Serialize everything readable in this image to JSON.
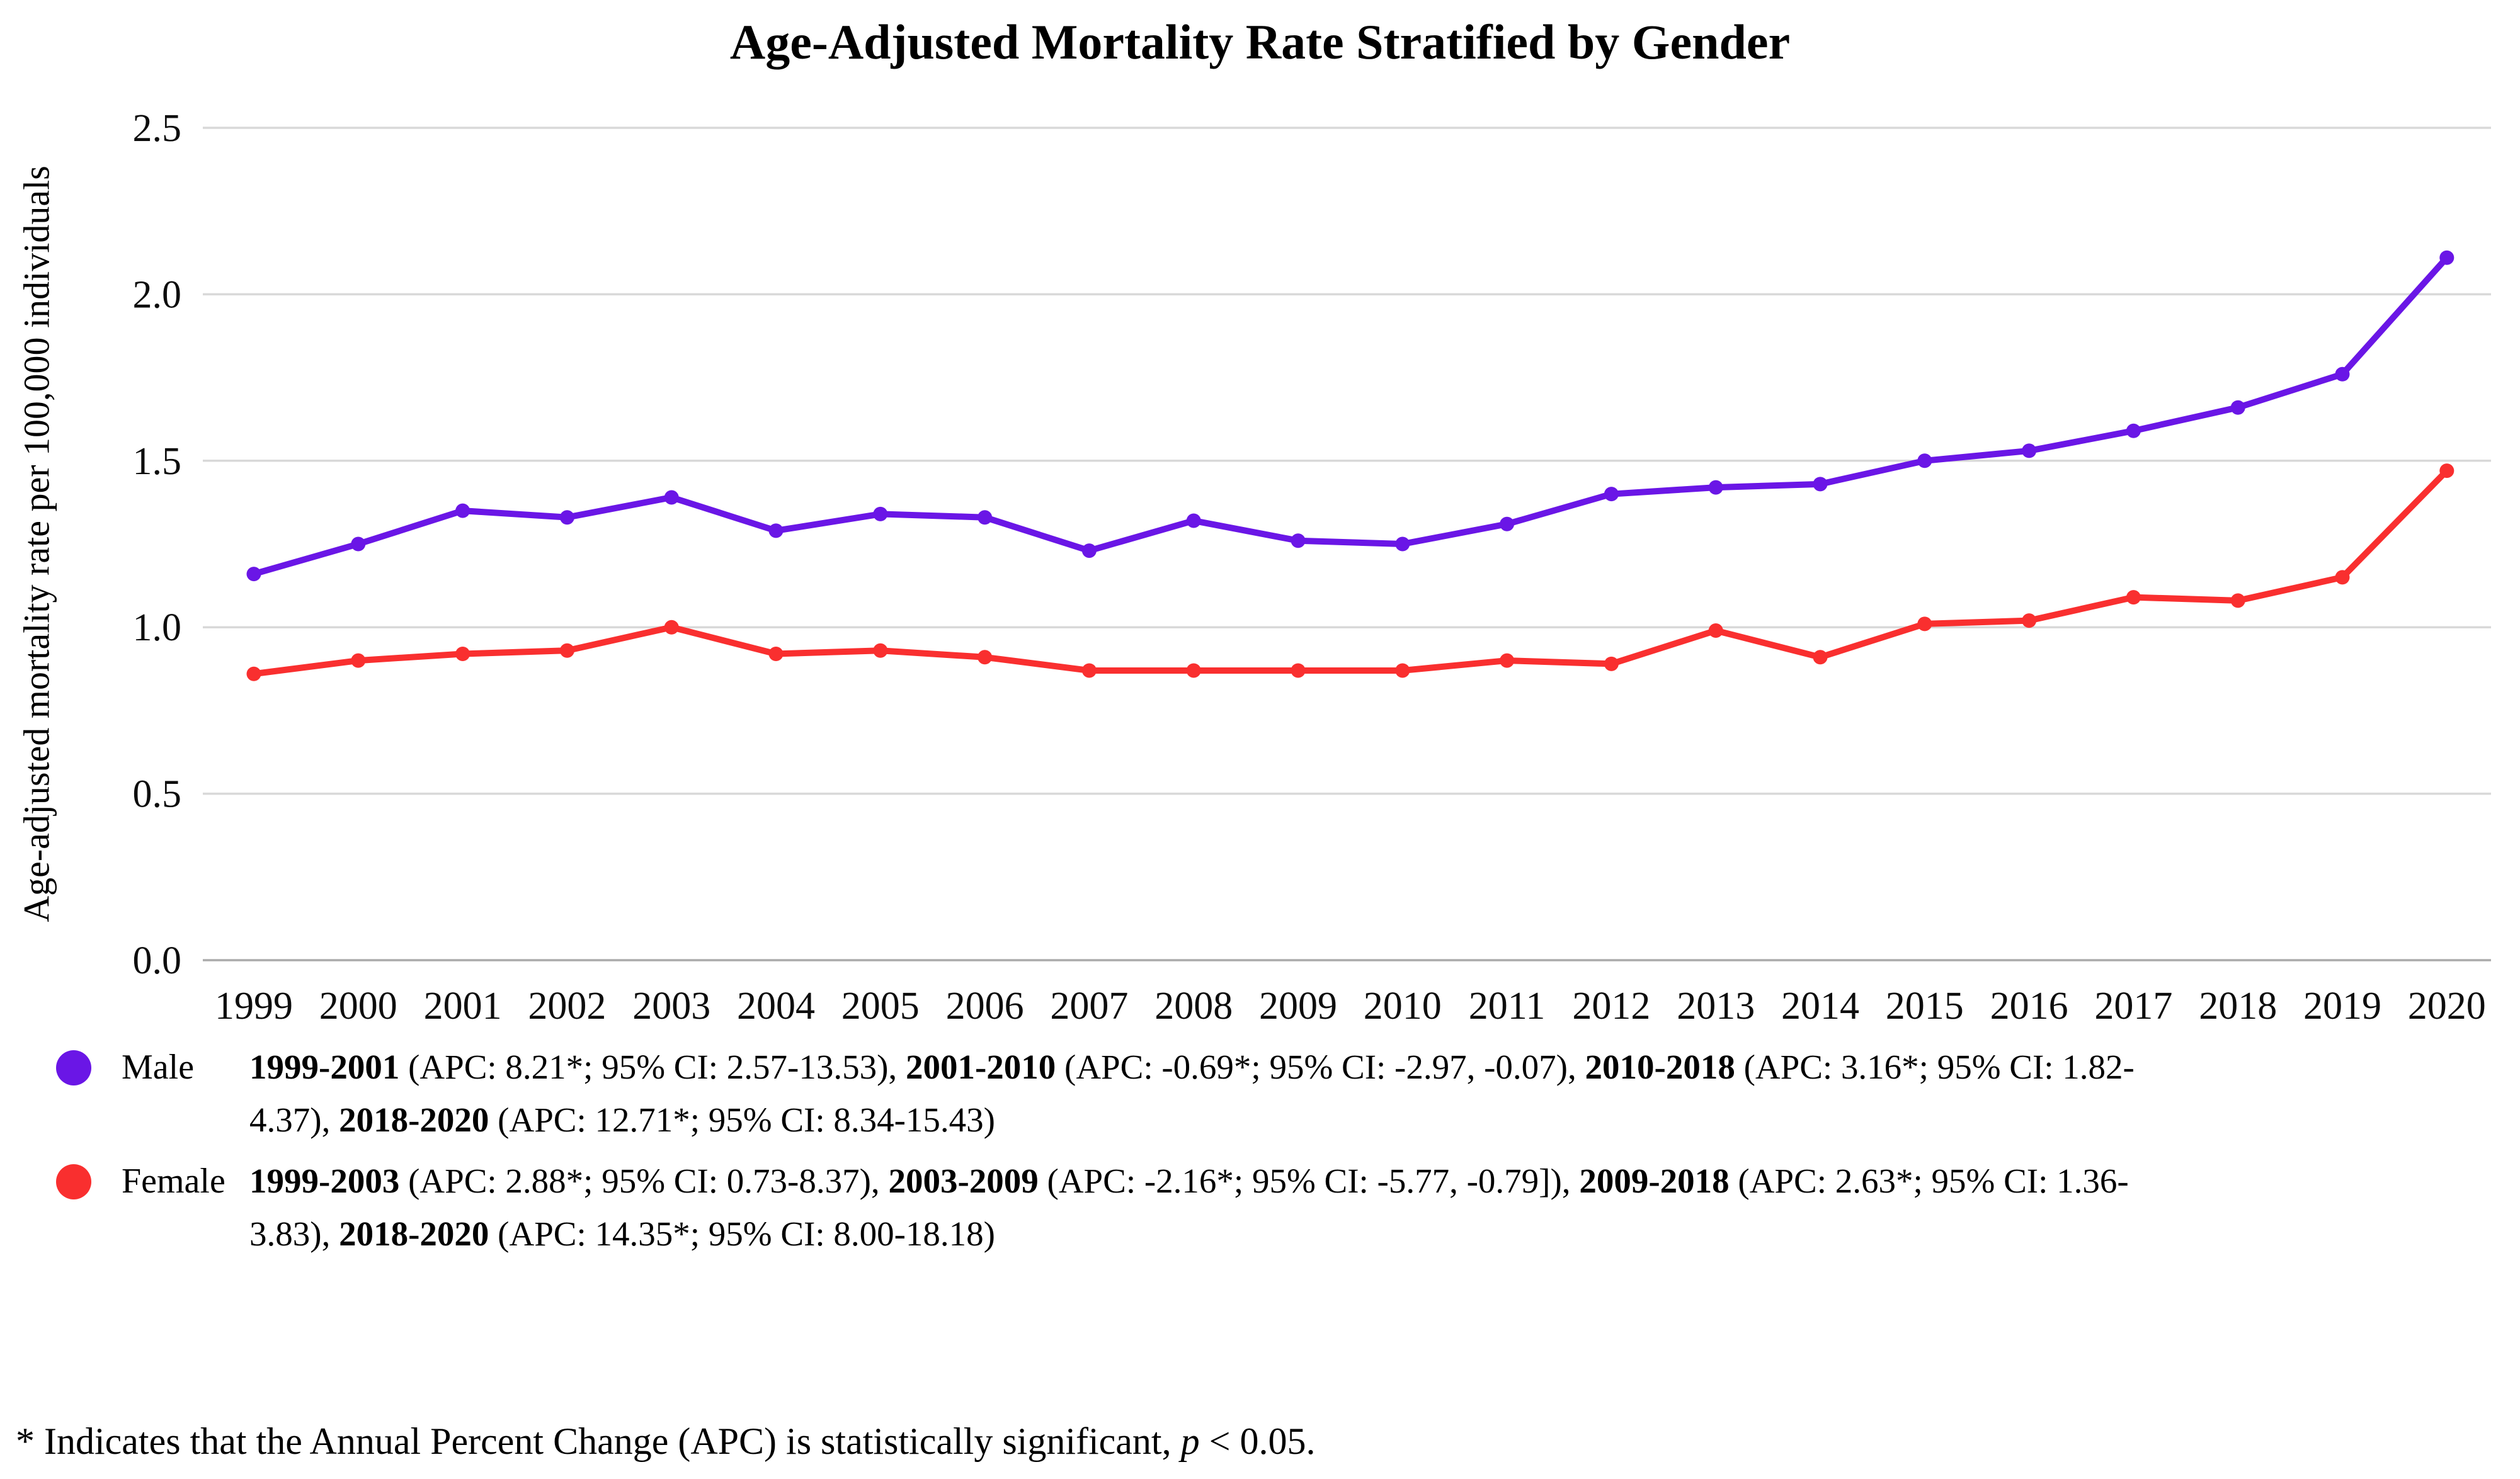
{
  "title": "Age-Adjusted Mortality Rate Stratified by Gender",
  "colors": {
    "male": "#6A16E6",
    "female": "#F92F2F",
    "gridline": "#d9d9d9",
    "axis_line": "#ababab"
  },
  "chart_data": {
    "type": "line",
    "title": "Age-Adjusted Mortality Rate Stratified by Gender",
    "xlabel": "",
    "ylabel": "Age-adjusted mortality rate per 100,000 individuals",
    "x": [
      1999,
      2000,
      2001,
      2002,
      2003,
      2004,
      2005,
      2006,
      2007,
      2008,
      2009,
      2010,
      2011,
      2012,
      2013,
      2014,
      2015,
      2016,
      2017,
      2018,
      2019,
      2020
    ],
    "x_tick_labels": [
      "1999",
      "2000",
      "2001",
      "2002",
      "2003",
      "2004",
      "2005",
      "2006",
      "2007",
      "2008",
      "2009",
      "2010",
      "2011",
      "2012",
      "2013",
      "2014",
      "2015",
      "2016",
      "2017",
      "2018",
      "2019",
      "2020"
    ],
    "ylim": [
      0,
      2.5
    ],
    "yticks": [
      0.0,
      0.5,
      1.0,
      1.5,
      2.0,
      2.5
    ],
    "y_tick_labels": [
      "0.0",
      "0.5",
      "1.0",
      "1.5",
      "2.0",
      "2.5"
    ],
    "grid": true,
    "legend_position": "bottom-left",
    "series": [
      {
        "name": "Male",
        "color": "#6A16E6",
        "values": [
          1.16,
          1.25,
          1.35,
          1.33,
          1.39,
          1.29,
          1.34,
          1.33,
          1.23,
          1.32,
          1.26,
          1.25,
          1.31,
          1.4,
          1.42,
          1.43,
          1.5,
          1.53,
          1.59,
          1.66,
          1.76,
          2.11
        ]
      },
      {
        "name": "Female",
        "color": "#F92F2F",
        "values": [
          0.86,
          0.9,
          0.92,
          0.93,
          1.0,
          0.92,
          0.93,
          0.91,
          0.87,
          0.87,
          0.87,
          0.87,
          0.9,
          0.89,
          0.99,
          0.91,
          1.01,
          1.02,
          1.09,
          1.08,
          1.15,
          1.47
        ]
      }
    ]
  },
  "legend": {
    "entries": [
      {
        "label": "Male",
        "color": "#6A16E6",
        "segments": [
          {
            "b": "1999-2001"
          },
          {
            "t": " (APC: 8.21*; 95% CI: 2.57-13.53), "
          },
          {
            "b": "2001-2010"
          },
          {
            "t": " (APC: -0.69*; 95% CI: -2.97, -0.07), "
          },
          {
            "b": "2010-2018"
          },
          {
            "t": " (APC: 3.16*; 95% CI: 1.82-"
          },
          {
            "br": true
          },
          {
            "t": "4.37), "
          },
          {
            "b": "2018-2020"
          },
          {
            "t": " (APC: 12.71*; 95% CI: 8.34-15.43)"
          }
        ]
      },
      {
        "label": "Female",
        "color": "#F92F2F",
        "segments": [
          {
            "b": "1999-2003"
          },
          {
            "t": " (APC: 2.88*; 95% CI: 0.73-8.37), "
          },
          {
            "b": "2003-2009"
          },
          {
            "t": " (APC: -2.16*; 95% CI: -5.77, -0.79]), "
          },
          {
            "b": "2009-2018"
          },
          {
            "t": " (APC: 2.63*; 95% CI: 1.36-"
          },
          {
            "br": true
          },
          {
            "t": "3.83), "
          },
          {
            "b": "2018-2020"
          },
          {
            "t": " (APC: 14.35*; 95% CI: 8.00-18.18)"
          }
        ]
      }
    ]
  },
  "footnote": {
    "segments": [
      {
        "t": "* Indicates that the Annual Percent Change (APC) is statistically significant, "
      },
      {
        "i": "p"
      },
      {
        "t": " < 0.05."
      }
    ]
  }
}
